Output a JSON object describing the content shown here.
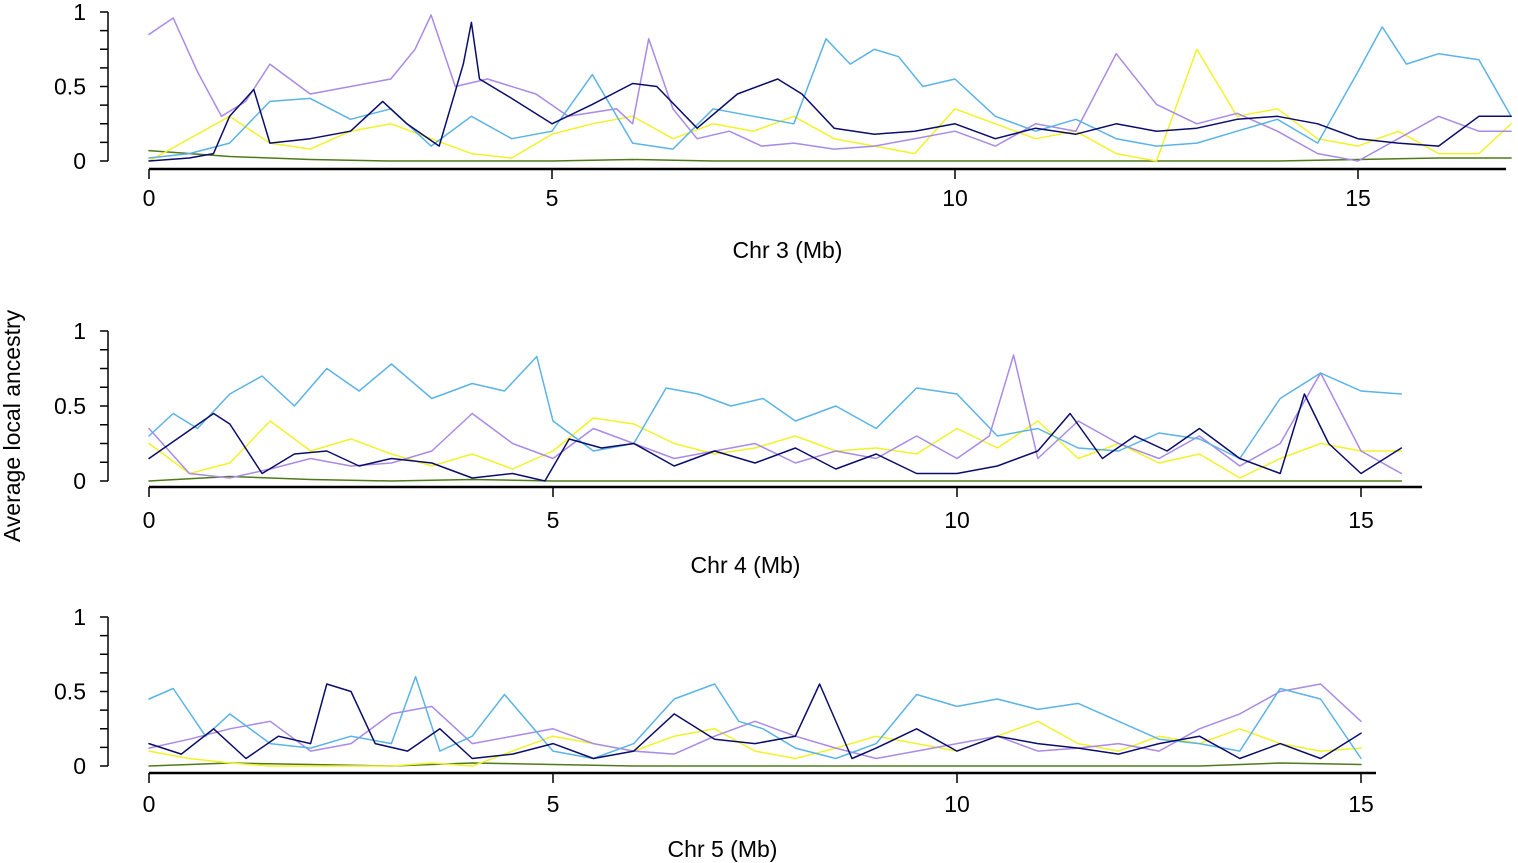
{
  "figure": {
    "ylabel": "Average local ancestry"
  },
  "series_colors": {
    "navy": "#0b0d6b",
    "sky": "#5bb3e6",
    "lavender": "#a98ae6",
    "yellow": "#f2f22a",
    "olive": "#4f7a19",
    "orange": "#d9a13a"
  },
  "chart_data": [
    {
      "type": "line",
      "xlabel": "Chr 3 (Mb)",
      "ylabel": "Average local ancestry",
      "xlim": [
        0,
        16.9
      ],
      "ylim": [
        0,
        1
      ],
      "xticks": [
        0,
        5,
        10,
        15
      ],
      "yticks": [
        0,
        0.5,
        1
      ],
      "ytick_labels": [
        "0",
        "0.5",
        "1"
      ],
      "series": [
        {
          "name": "navy",
          "x": [
            0,
            0.5,
            0.8,
            1.0,
            1.3,
            1.5,
            2.0,
            2.5,
            2.9,
            3.2,
            3.6,
            3.9,
            4.0,
            4.1,
            4.5,
            5.0,
            5.5,
            6.0,
            6.3,
            6.8,
            7.3,
            7.8,
            8.1,
            8.5,
            9.0,
            9.5,
            10.0,
            10.5,
            11.0,
            11.5,
            12.0,
            12.5,
            13.0,
            13.5,
            14.0,
            14.5,
            15.0,
            15.5,
            16.0,
            16.5,
            16.9
          ],
          "y": [
            0.0,
            0.02,
            0.05,
            0.3,
            0.48,
            0.12,
            0.15,
            0.2,
            0.4,
            0.25,
            0.1,
            0.65,
            0.93,
            0.55,
            0.42,
            0.25,
            0.38,
            0.52,
            0.5,
            0.22,
            0.45,
            0.55,
            0.45,
            0.22,
            0.18,
            0.2,
            0.25,
            0.15,
            0.22,
            0.18,
            0.25,
            0.2,
            0.22,
            0.28,
            0.3,
            0.25,
            0.15,
            0.12,
            0.1,
            0.3,
            0.3
          ]
        },
        {
          "name": "sky",
          "x": [
            0,
            0.5,
            1.0,
            1.5,
            2.0,
            2.5,
            3.0,
            3.5,
            4.0,
            4.5,
            5.0,
            5.5,
            6.0,
            6.5,
            7.0,
            7.5,
            8.0,
            8.4,
            8.7,
            9.0,
            9.3,
            9.6,
            10.0,
            10.5,
            11.0,
            11.5,
            12.0,
            12.5,
            13.0,
            13.5,
            14.0,
            14.5,
            15.0,
            15.3,
            15.6,
            16.0,
            16.5,
            16.9
          ],
          "y": [
            0.02,
            0.05,
            0.12,
            0.4,
            0.42,
            0.28,
            0.35,
            0.1,
            0.3,
            0.15,
            0.2,
            0.58,
            0.12,
            0.08,
            0.35,
            0.3,
            0.25,
            0.82,
            0.65,
            0.75,
            0.7,
            0.5,
            0.55,
            0.3,
            0.2,
            0.28,
            0.15,
            0.1,
            0.12,
            0.2,
            0.28,
            0.12,
            0.6,
            0.9,
            0.65,
            0.72,
            0.68,
            0.3
          ]
        },
        {
          "name": "lavender",
          "x": [
            0,
            0.3,
            0.6,
            0.9,
            1.2,
            1.5,
            2.0,
            2.5,
            3.0,
            3.3,
            3.5,
            3.8,
            4.2,
            4.8,
            5.2,
            5.8,
            6.0,
            6.2,
            6.5,
            6.8,
            7.2,
            7.6,
            8.0,
            8.5,
            9.0,
            9.5,
            10.0,
            10.5,
            11.0,
            11.5,
            12.0,
            12.5,
            13.0,
            13.5,
            14.0,
            14.5,
            15.0,
            15.5,
            16.0,
            16.5,
            16.9
          ],
          "y": [
            0.85,
            0.96,
            0.6,
            0.3,
            0.4,
            0.65,
            0.45,
            0.5,
            0.55,
            0.75,
            0.98,
            0.5,
            0.55,
            0.45,
            0.3,
            0.35,
            0.25,
            0.82,
            0.35,
            0.15,
            0.2,
            0.1,
            0.12,
            0.08,
            0.1,
            0.15,
            0.2,
            0.1,
            0.25,
            0.2,
            0.72,
            0.38,
            0.25,
            0.32,
            0.2,
            0.05,
            0.0,
            0.15,
            0.3,
            0.2,
            0.2
          ]
        },
        {
          "name": "yellow",
          "x": [
            0,
            0.5,
            1.0,
            1.5,
            2.0,
            2.5,
            3.0,
            3.5,
            4.0,
            4.5,
            5.0,
            5.5,
            6.0,
            6.5,
            7.0,
            7.5,
            8.0,
            8.5,
            9.0,
            9.5,
            10.0,
            10.5,
            11.0,
            11.5,
            12.0,
            12.5,
            13.0,
            13.5,
            14.0,
            14.5,
            15.0,
            15.5,
            16.0,
            16.5,
            16.9
          ],
          "y": [
            0.0,
            0.15,
            0.3,
            0.12,
            0.08,
            0.2,
            0.25,
            0.15,
            0.05,
            0.02,
            0.18,
            0.25,
            0.3,
            0.15,
            0.25,
            0.2,
            0.3,
            0.15,
            0.1,
            0.05,
            0.35,
            0.25,
            0.15,
            0.2,
            0.05,
            0.0,
            0.75,
            0.3,
            0.35,
            0.15,
            0.1,
            0.2,
            0.05,
            0.05,
            0.25
          ]
        },
        {
          "name": "olive",
          "x": [
            0,
            1.0,
            2.0,
            3.0,
            4.0,
            5.0,
            6.0,
            7.0,
            8.0,
            9.0,
            10.0,
            11.0,
            12.0,
            13.0,
            14.0,
            15.0,
            16.0,
            16.9
          ],
          "y": [
            0.07,
            0.03,
            0.01,
            0.0,
            0.0,
            0.0,
            0.01,
            0.0,
            0.0,
            0.0,
            0.0,
            0.0,
            0.0,
            0.0,
            0.0,
            0.01,
            0.02,
            0.02
          ]
        }
      ]
    },
    {
      "type": "line",
      "xlabel": "Chr 4 (Mb)",
      "ylabel": "Average local ancestry",
      "xlim": [
        0,
        15.5
      ],
      "ylim": [
        0,
        1
      ],
      "xticks": [
        0,
        5,
        10,
        15
      ],
      "yticks": [
        0,
        0.5,
        1
      ],
      "ytick_labels": [
        "0",
        "0.5",
        "1"
      ],
      "series": [
        {
          "name": "navy",
          "x": [
            0,
            0.4,
            0.8,
            1.0,
            1.4,
            1.8,
            2.2,
            2.6,
            3.0,
            3.5,
            4.0,
            4.5,
            4.9,
            5.2,
            5.6,
            6.0,
            6.5,
            7.0,
            7.5,
            8.0,
            8.5,
            9.0,
            9.5,
            10.0,
            10.5,
            11.0,
            11.4,
            11.8,
            12.2,
            12.6,
            13.0,
            13.5,
            14.0,
            14.3,
            14.6,
            15.0,
            15.5
          ],
          "y": [
            0.15,
            0.3,
            0.45,
            0.38,
            0.05,
            0.18,
            0.2,
            0.1,
            0.15,
            0.12,
            0.02,
            0.05,
            0.0,
            0.28,
            0.22,
            0.25,
            0.1,
            0.2,
            0.12,
            0.22,
            0.08,
            0.18,
            0.05,
            0.05,
            0.1,
            0.2,
            0.45,
            0.15,
            0.3,
            0.2,
            0.35,
            0.15,
            0.05,
            0.58,
            0.25,
            0.05,
            0.22
          ]
        },
        {
          "name": "sky",
          "x": [
            0,
            0.3,
            0.6,
            1.0,
            1.4,
            1.8,
            2.2,
            2.6,
            3.0,
            3.5,
            4.0,
            4.4,
            4.8,
            5.0,
            5.5,
            6.0,
            6.4,
            6.8,
            7.2,
            7.6,
            8.0,
            8.5,
            9.0,
            9.5,
            10.0,
            10.5,
            11.0,
            11.5,
            12.0,
            12.5,
            13.0,
            13.5,
            14.0,
            14.5,
            15.0,
            15.5
          ],
          "y": [
            0.3,
            0.45,
            0.35,
            0.58,
            0.7,
            0.5,
            0.75,
            0.6,
            0.78,
            0.55,
            0.65,
            0.6,
            0.83,
            0.4,
            0.2,
            0.25,
            0.62,
            0.58,
            0.5,
            0.55,
            0.4,
            0.5,
            0.35,
            0.62,
            0.58,
            0.3,
            0.35,
            0.22,
            0.2,
            0.32,
            0.28,
            0.15,
            0.55,
            0.72,
            0.6,
            0.58
          ]
        },
        {
          "name": "lavender",
          "x": [
            0,
            0.5,
            1.0,
            1.5,
            2.0,
            2.5,
            3.0,
            3.5,
            4.0,
            4.5,
            5.0,
            5.5,
            6.0,
            6.5,
            7.0,
            7.5,
            8.0,
            8.5,
            9.0,
            9.5,
            10.0,
            10.4,
            10.7,
            11.0,
            11.5,
            12.0,
            12.5,
            13.0,
            13.5,
            14.0,
            14.5,
            15.0,
            15.5
          ],
          "y": [
            0.35,
            0.05,
            0.02,
            0.08,
            0.15,
            0.1,
            0.12,
            0.2,
            0.45,
            0.25,
            0.15,
            0.35,
            0.25,
            0.15,
            0.2,
            0.25,
            0.12,
            0.2,
            0.15,
            0.3,
            0.15,
            0.3,
            0.84,
            0.15,
            0.4,
            0.25,
            0.15,
            0.3,
            0.1,
            0.25,
            0.72,
            0.2,
            0.05
          ]
        },
        {
          "name": "yellow",
          "x": [
            0,
            0.5,
            1.0,
            1.5,
            2.0,
            2.5,
            3.0,
            3.5,
            4.0,
            4.5,
            5.0,
            5.5,
            6.0,
            6.5,
            7.0,
            7.5,
            8.0,
            8.5,
            9.0,
            9.5,
            10.0,
            10.5,
            11.0,
            11.5,
            12.0,
            12.5,
            13.0,
            13.5,
            14.0,
            14.5,
            15.0,
            15.5
          ],
          "y": [
            0.25,
            0.05,
            0.12,
            0.4,
            0.2,
            0.28,
            0.18,
            0.1,
            0.18,
            0.08,
            0.2,
            0.42,
            0.38,
            0.25,
            0.18,
            0.22,
            0.3,
            0.2,
            0.22,
            0.18,
            0.35,
            0.22,
            0.4,
            0.15,
            0.25,
            0.12,
            0.18,
            0.02,
            0.15,
            0.25,
            0.2,
            0.2
          ]
        },
        {
          "name": "olive",
          "x": [
            0,
            1.0,
            2.0,
            3.0,
            4.0,
            5.0,
            6.0,
            7.0,
            8.0,
            9.0,
            10.0,
            11.0,
            12.0,
            13.0,
            14.0,
            15.0,
            15.5
          ],
          "y": [
            0.0,
            0.03,
            0.01,
            0.0,
            0.01,
            0.0,
            0.0,
            0.0,
            0.0,
            0.0,
            0.0,
            0.0,
            0.0,
            0.0,
            0.0,
            0.0,
            0.0
          ]
        }
      ]
    },
    {
      "type": "line",
      "xlabel": "Chr 5 (Mb)",
      "ylabel": "Average local ancestry",
      "xlim": [
        0,
        15.2
      ],
      "ylim": [
        0,
        1
      ],
      "xticks": [
        0,
        5,
        10,
        15
      ],
      "yticks": [
        0,
        0.5,
        1
      ],
      "ytick_labels": [
        "0",
        "0.5",
        "1"
      ],
      "series": [
        {
          "name": "navy",
          "x": [
            0,
            0.4,
            0.8,
            1.2,
            1.6,
            2.0,
            2.2,
            2.5,
            2.8,
            3.2,
            3.6,
            4.0,
            4.5,
            5.0,
            5.5,
            6.0,
            6.5,
            7.0,
            7.5,
            8.0,
            8.3,
            8.7,
            9.0,
            9.5,
            10.0,
            10.5,
            11.0,
            11.5,
            12.0,
            12.5,
            13.0,
            13.5,
            14.0,
            14.5,
            15.0
          ],
          "y": [
            0.15,
            0.08,
            0.25,
            0.05,
            0.2,
            0.15,
            0.55,
            0.5,
            0.15,
            0.1,
            0.25,
            0.05,
            0.08,
            0.15,
            0.05,
            0.1,
            0.35,
            0.18,
            0.15,
            0.2,
            0.55,
            0.05,
            0.12,
            0.25,
            0.1,
            0.2,
            0.15,
            0.12,
            0.08,
            0.15,
            0.2,
            0.05,
            0.15,
            0.05,
            0.22
          ]
        },
        {
          "name": "sky",
          "x": [
            0,
            0.3,
            0.7,
            1.0,
            1.5,
            2.0,
            2.5,
            3.0,
            3.3,
            3.6,
            4.0,
            4.4,
            5.0,
            5.5,
            6.0,
            6.5,
            7.0,
            7.3,
            7.6,
            8.0,
            8.5,
            9.0,
            9.5,
            10.0,
            10.5,
            11.0,
            11.5,
            12.0,
            12.5,
            13.0,
            13.5,
            14.0,
            14.5,
            15.0
          ],
          "y": [
            0.45,
            0.52,
            0.2,
            0.35,
            0.15,
            0.12,
            0.2,
            0.15,
            0.6,
            0.1,
            0.2,
            0.48,
            0.1,
            0.05,
            0.15,
            0.45,
            0.55,
            0.3,
            0.25,
            0.12,
            0.05,
            0.15,
            0.48,
            0.4,
            0.45,
            0.38,
            0.42,
            0.3,
            0.18,
            0.15,
            0.1,
            0.52,
            0.45,
            0.05
          ]
        },
        {
          "name": "lavender",
          "x": [
            0,
            0.5,
            1.0,
            1.5,
            2.0,
            2.5,
            3.0,
            3.5,
            4.0,
            4.5,
            5.0,
            5.5,
            6.0,
            6.5,
            7.0,
            7.5,
            8.0,
            8.5,
            9.0,
            9.5,
            10.0,
            10.5,
            11.0,
            11.5,
            12.0,
            12.5,
            13.0,
            13.5,
            14.0,
            14.5,
            15.0
          ],
          "y": [
            0.12,
            0.18,
            0.25,
            0.3,
            0.1,
            0.15,
            0.35,
            0.4,
            0.15,
            0.2,
            0.25,
            0.15,
            0.1,
            0.08,
            0.2,
            0.3,
            0.2,
            0.12,
            0.05,
            0.1,
            0.15,
            0.2,
            0.1,
            0.12,
            0.15,
            0.1,
            0.25,
            0.35,
            0.5,
            0.55,
            0.3
          ]
        },
        {
          "name": "yellow",
          "x": [
            0,
            0.5,
            1.0,
            1.5,
            2.0,
            2.5,
            3.0,
            3.5,
            4.0,
            4.5,
            5.0,
            5.5,
            6.0,
            6.5,
            7.0,
            7.5,
            8.0,
            8.5,
            9.0,
            9.5,
            10.0,
            10.5,
            11.0,
            11.5,
            12.0,
            12.5,
            13.0,
            13.5,
            14.0,
            14.5,
            15.0
          ],
          "y": [
            0.1,
            0.05,
            0.02,
            0.0,
            0.0,
            0.0,
            0.0,
            0.02,
            0.0,
            0.1,
            0.2,
            0.15,
            0.1,
            0.2,
            0.25,
            0.1,
            0.05,
            0.12,
            0.2,
            0.15,
            0.1,
            0.2,
            0.3,
            0.15,
            0.1,
            0.2,
            0.15,
            0.25,
            0.15,
            0.1,
            0.12
          ]
        },
        {
          "name": "olive",
          "x": [
            0,
            1.0,
            2.0,
            3.0,
            4.0,
            5.0,
            6.0,
            7.0,
            8.0,
            9.0,
            10.0,
            11.0,
            12.0,
            13.0,
            14.0,
            15.0
          ],
          "y": [
            0.0,
            0.02,
            0.01,
            0.0,
            0.02,
            0.01,
            0.0,
            0.0,
            0.0,
            0.0,
            0.0,
            0.0,
            0.0,
            0.0,
            0.02,
            0.01
          ]
        }
      ]
    }
  ]
}
